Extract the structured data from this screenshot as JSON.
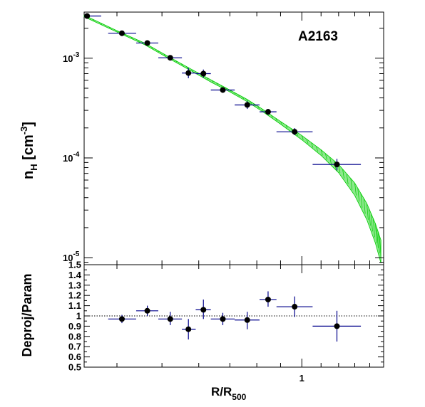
{
  "chart_data": [
    {
      "type": "scatter",
      "panel": "top",
      "title": "A2163",
      "ylabel": "n_H [cm^-3]",
      "ylabel_parts": {
        "base": "n",
        "sub": "H",
        "unit_open": " [cm",
        "sup": "-3",
        "unit_close": "]"
      },
      "yscale": "log",
      "xscale": "log",
      "xlim": [
        0.34,
        1.5
      ],
      "ylim": [
        8.5e-06,
        0.0029
      ],
      "yticks": [
        {
          "value": 0.001,
          "base": "10",
          "exp": "-3"
        },
        {
          "value": 0.0001,
          "base": "10",
          "exp": "-4"
        },
        {
          "value": 1e-05,
          "base": "10",
          "exp": "-5"
        }
      ],
      "grid": false,
      "series": [
        {
          "kind": "points_with_errors",
          "marker_color": "#000000",
          "xerr_color": "#00008b",
          "points": [
            {
              "x": 0.345,
              "xlo": 0.34,
              "xhi": 0.37,
              "y": 0.00265,
              "ylo": 0.00255,
              "yhi": 0.00275
            },
            {
              "x": 0.41,
              "xlo": 0.383,
              "xhi": 0.44,
              "y": 0.00178,
              "ylo": 0.0017,
              "yhi": 0.00186
            },
            {
              "x": 0.465,
              "xlo": 0.44,
              "xhi": 0.491,
              "y": 0.00142,
              "ylo": 0.00135,
              "yhi": 0.00149
            },
            {
              "x": 0.521,
              "xlo": 0.491,
              "xhi": 0.552,
              "y": 0.00101,
              "ylo": 0.00095,
              "yhi": 0.00107
            },
            {
              "x": 0.57,
              "xlo": 0.552,
              "xhi": 0.591,
              "y": 0.00071,
              "ylo": 0.00063,
              "yhi": 0.0008
            },
            {
              "x": 0.614,
              "xlo": 0.591,
              "xhi": 0.637,
              "y": 0.0007,
              "ylo": 0.00064,
              "yhi": 0.00077
            },
            {
              "x": 0.676,
              "xlo": 0.637,
              "xhi": 0.717,
              "y": 0.00048,
              "ylo": 0.00045,
              "yhi": 0.00051
            },
            {
              "x": 0.763,
              "xlo": 0.717,
              "xhi": 0.811,
              "y": 0.00034,
              "ylo": 0.00031,
              "yhi": 0.00037
            },
            {
              "x": 0.846,
              "xlo": 0.811,
              "xhi": 0.882,
              "y": 0.00029,
              "ylo": 0.00027,
              "yhi": 0.00031
            },
            {
              "x": 0.965,
              "xlo": 0.882,
              "xhi": 1.055,
              "y": 0.000183,
              "ylo": 0.000169,
              "yhi": 0.000199
            },
            {
              "x": 1.19,
              "xlo": 1.055,
              "xhi": 1.34,
              "y": 8.6e-05,
              "ylo": 7.5e-05,
              "yhi": 9.8e-05
            }
          ]
        },
        {
          "kind": "model_band",
          "color": "#00cc00",
          "points": [
            {
              "x": 0.34,
              "lo": 0.0026,
              "hi": 0.0027
            },
            {
              "x": 0.4,
              "lo": 0.00183,
              "hi": 0.00189
            },
            {
              "x": 0.46,
              "lo": 0.00136,
              "hi": 0.00141
            },
            {
              "x": 0.52,
              "lo": 0.00098,
              "hi": 0.00102
            },
            {
              "x": 0.58,
              "lo": 0.00074,
              "hi": 0.00077
            },
            {
              "x": 0.64,
              "lo": 0.00057,
              "hi": 0.0006
            },
            {
              "x": 0.7,
              "lo": 0.00046,
              "hi": 0.00048
            },
            {
              "x": 0.76,
              "lo": 0.00037,
              "hi": 0.00039
            },
            {
              "x": 0.82,
              "lo": 0.000295,
              "hi": 0.000312
            },
            {
              "x": 0.9,
              "lo": 0.000218,
              "hi": 0.000232
            },
            {
              "x": 1.0,
              "lo": 0.000152,
              "hi": 0.000168
            },
            {
              "x": 1.1,
              "lo": 0.000106,
              "hi": 0.000121
            },
            {
              "x": 1.2,
              "lo": 7.1e-05,
              "hi": 8.6e-05
            },
            {
              "x": 1.3,
              "lo": 4.2e-05,
              "hi": 5.6e-05
            },
            {
              "x": 1.38,
              "lo": 2.4e-05,
              "hi": 3.5e-05
            },
            {
              "x": 1.44,
              "lo": 1.4e-05,
              "hi": 2.2e-05
            },
            {
              "x": 1.48,
              "lo": 8.8e-06,
              "hi": 1.5e-05
            }
          ]
        }
      ]
    },
    {
      "type": "scatter",
      "panel": "bottom",
      "ylabel": "Deproj/Param",
      "xlabel": "R/R_500",
      "xlabel_parts": {
        "base": "R/R",
        "sub": "500"
      },
      "xscale": "log",
      "xlim": [
        0.34,
        1.5
      ],
      "ylim": [
        0.5,
        1.5
      ],
      "yticks": [
        "0.5",
        "0.6",
        "0.7",
        "0.8",
        "0.9",
        "1",
        "1.1",
        "1.2",
        "1.3",
        "1.4",
        "1.5"
      ],
      "xticks": [
        {
          "value": 1,
          "label": "1"
        }
      ],
      "reference_line": 1.0,
      "grid": false,
      "series": [
        {
          "kind": "points_with_errors",
          "marker_color": "#000000",
          "xerr_color": "#00008b",
          "points": [
            {
              "x": 0.41,
              "xlo": 0.383,
              "xhi": 0.44,
              "y": 0.97,
              "ylo": 0.93,
              "yhi": 1.01
            },
            {
              "x": 0.465,
              "xlo": 0.44,
              "xhi": 0.491,
              "y": 1.05,
              "ylo": 1.0,
              "yhi": 1.1
            },
            {
              "x": 0.521,
              "xlo": 0.491,
              "xhi": 0.552,
              "y": 0.97,
              "ylo": 0.91,
              "yhi": 1.04
            },
            {
              "x": 0.57,
              "xlo": 0.552,
              "xhi": 0.591,
              "y": 0.87,
              "ylo": 0.77,
              "yhi": 0.97
            },
            {
              "x": 0.614,
              "xlo": 0.591,
              "xhi": 0.637,
              "y": 1.06,
              "ylo": 0.97,
              "yhi": 1.16
            },
            {
              "x": 0.676,
              "xlo": 0.637,
              "xhi": 0.717,
              "y": 0.97,
              "ylo": 0.91,
              "yhi": 1.03
            },
            {
              "x": 0.763,
              "xlo": 0.717,
              "xhi": 0.811,
              "y": 0.96,
              "ylo": 0.87,
              "yhi": 1.04
            },
            {
              "x": 0.846,
              "xlo": 0.811,
              "xhi": 0.882,
              "y": 1.16,
              "ylo": 1.09,
              "yhi": 1.24
            },
            {
              "x": 0.965,
              "xlo": 0.882,
              "xhi": 1.055,
              "y": 1.09,
              "ylo": 0.99,
              "yhi": 1.19
            },
            {
              "x": 1.19,
              "xlo": 1.055,
              "xhi": 1.34,
              "y": 0.9,
              "ylo": 0.75,
              "yhi": 1.05
            }
          ]
        }
      ]
    }
  ]
}
